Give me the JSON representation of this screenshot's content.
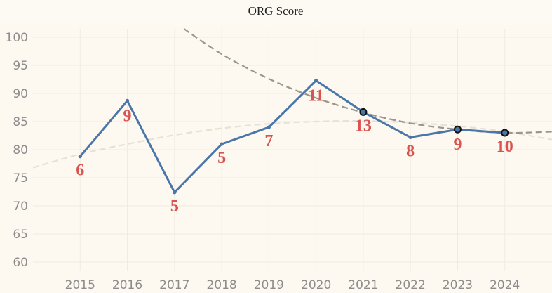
{
  "chart_data": {
    "type": "line",
    "title": "ORG Score",
    "xlabel": "",
    "ylabel": "",
    "categories": [
      "2015",
      "2016",
      "2017",
      "2018",
      "2019",
      "2020",
      "2021",
      "2022",
      "2023",
      "2024"
    ],
    "series": [
      {
        "values": [
          78.8,
          88.7,
          72.4,
          81.0,
          84.0,
          92.3,
          86.7,
          82.2,
          83.6,
          83.0
        ],
        "labels": [
          "6",
          "9",
          "5",
          "5",
          "7",
          "11",
          "13",
          "8",
          "9",
          "10"
        ],
        "highlighted": [
          false,
          false,
          false,
          false,
          false,
          false,
          true,
          false,
          true,
          true
        ],
        "color": "#4a76a8"
      }
    ],
    "trend_lines": [
      {
        "style": "dashed",
        "color": "#9a968e",
        "x": [
          2017.2,
          2018.0,
          2019.0,
          2020.0,
          2021.0,
          2022.0,
          2023.0,
          2024.0,
          2025.0
        ],
        "values": [
          101.5,
          97.0,
          92.6,
          89.2,
          86.6,
          84.7,
          83.6,
          83.0,
          83.2
        ]
      },
      {
        "style": "dashed",
        "color": "#e6e1d7",
        "x": [
          2014.0,
          2015.0,
          2016.0,
          2017.0,
          2018.0,
          2019.0,
          2020.0,
          2021.0,
          2022.0,
          2023.0,
          2024.0,
          2025.0
        ],
        "values": [
          76.8,
          79.2,
          81.0,
          82.6,
          83.8,
          84.6,
          85.0,
          85.1,
          84.8,
          84.2,
          83.2,
          81.8
        ]
      }
    ],
    "yticks": [
      60,
      65,
      70,
      75,
      80,
      85,
      90,
      95,
      100
    ],
    "ylim": [
      58.5,
      101.5
    ],
    "xlim": [
      2014.0,
      2025.0
    ],
    "grid": true,
    "colors": {
      "background": "#fdf9f1",
      "header": "#fdfaf3",
      "grid": "#f0ebe2",
      "line": "#4a76a8",
      "label": "#d9534f"
    }
  }
}
